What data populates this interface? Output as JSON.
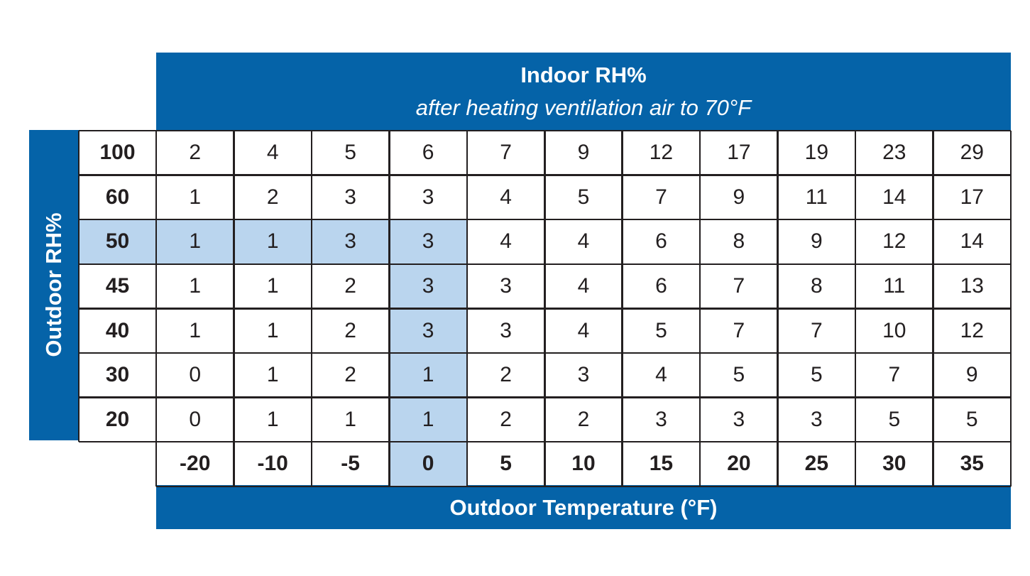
{
  "chart_data": {
    "type": "table",
    "title": "Indoor RH%",
    "subtitle": "after heating ventilation air to 70°F",
    "xlabel": "Outdoor Temperature (°F)",
    "ylabel": "Outdoor RH%",
    "columns": [
      "-20",
      "-10",
      "-5",
      "0",
      "5",
      "10",
      "15",
      "20",
      "25",
      "30",
      "35"
    ],
    "rows": [
      {
        "label": "100",
        "values": [
          "2",
          "4",
          "5",
          "6",
          "7",
          "9",
          "12",
          "17",
          "19",
          "23",
          "29"
        ]
      },
      {
        "label": "60",
        "values": [
          "1",
          "2",
          "3",
          "3",
          "4",
          "5",
          "7",
          "9",
          "11",
          "14",
          "17"
        ]
      },
      {
        "label": "50",
        "values": [
          "1",
          "1",
          "3",
          "3",
          "4",
          "4",
          "6",
          "8",
          "9",
          "12",
          "14"
        ]
      },
      {
        "label": "45",
        "values": [
          "1",
          "1",
          "2",
          "3",
          "3",
          "4",
          "6",
          "7",
          "8",
          "11",
          "13"
        ]
      },
      {
        "label": "40",
        "values": [
          "1",
          "1",
          "2",
          "3",
          "3",
          "4",
          "5",
          "7",
          "7",
          "10",
          "12"
        ]
      },
      {
        "label": "30",
        "values": [
          "0",
          "1",
          "2",
          "1",
          "2",
          "3",
          "4",
          "5",
          "5",
          "7",
          "9"
        ]
      },
      {
        "label": "20",
        "values": [
          "0",
          "1",
          "1",
          "1",
          "2",
          "2",
          "3",
          "3",
          "3",
          "5",
          "5"
        ]
      }
    ],
    "highlight_row": "50",
    "highlight_column": "0",
    "colors": {
      "banner": "#0563a8",
      "highlight": "#bad5ee",
      "text": "#231f20",
      "grid": "#231f20"
    }
  }
}
